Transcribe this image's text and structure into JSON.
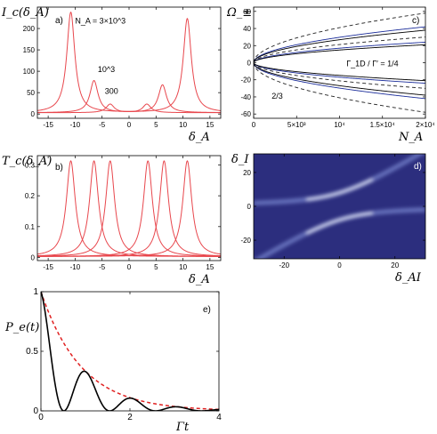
{
  "chart_data": [
    {
      "id": "a",
      "type": "line",
      "panel_label": "a)",
      "ylabel": "I_c(δ_A)",
      "xlabel": "δ_A",
      "xlim": [
        -17,
        17
      ],
      "ylim": [
        -10,
        250
      ],
      "xticks": [
        -15,
        -10,
        -5,
        0,
        5,
        10,
        15
      ],
      "yticks": [
        0,
        50,
        100,
        150,
        200
      ],
      "line_color": "#e8474d",
      "series": [
        {
          "name": "N_A = 3×10^3",
          "peaks": [
            {
              "x": -10.8,
              "y": 235,
              "w": 0.9
            },
            {
              "x": 10.8,
              "y": 220,
              "w": 0.9
            }
          ]
        },
        {
          "name": "10^3",
          "peaks": [
            {
              "x": -6.5,
              "y": 75,
              "w": 0.9
            },
            {
              "x": 6.2,
              "y": 65,
              "w": 0.9
            }
          ]
        },
        {
          "name": "300",
          "peaks": [
            {
              "x": -3.5,
              "y": 20,
              "w": 0.9
            },
            {
              "x": 3.3,
              "y": 20,
              "w": 0.9
            }
          ]
        }
      ],
      "annotations": [
        {
          "text": "N_A = 3×10^3",
          "x": -10,
          "y": 212
        },
        {
          "text": "10^3",
          "x": -5.8,
          "y": 98
        },
        {
          "text": "300",
          "x": -4.5,
          "y": 47
        }
      ]
    },
    {
      "id": "b",
      "type": "line",
      "panel_label": "b)",
      "ylabel": "T_c(δ_A)",
      "xlabel": "δ_A",
      "xlim": [
        -17,
        17
      ],
      "ylim": [
        -0.01,
        0.33
      ],
      "xticks": [
        -15,
        -10,
        -5,
        0,
        5,
        10,
        15
      ],
      "yticks": [
        0,
        0.1,
        0.2,
        0.3
      ],
      "line_color": "#e8474d",
      "peaks": [
        {
          "x": -10.8,
          "y": 0.31,
          "w": 1.0
        },
        {
          "x": -6.5,
          "y": 0.31,
          "w": 1.0
        },
        {
          "x": -3.5,
          "y": 0.31,
          "w": 1.0
        },
        {
          "x": 3.5,
          "y": 0.31,
          "w": 1.0
        },
        {
          "x": 6.5,
          "y": 0.31,
          "w": 1.0
        },
        {
          "x": 10.8,
          "y": 0.31,
          "w": 1.0
        }
      ]
    },
    {
      "id": "c",
      "type": "line",
      "panel_label": "c)",
      "ylabel": "Ω_±",
      "xlabel": "N_A",
      "xlim": [
        0,
        20000
      ],
      "ylim": [
        -65,
        65
      ],
      "xticks": [
        0,
        5000,
        10000,
        15000,
        20000
      ],
      "xtick_labels": [
        "0",
        "5×10³",
        "10⁴",
        "1.5×10⁴",
        "2×10⁴"
      ],
      "yticks": [
        -60,
        -40,
        -20,
        0,
        20,
        40,
        60
      ],
      "series": [
        {
          "name": "outer dashed",
          "style": "dashed",
          "color": "#222222",
          "end_values": [
            58,
            -58
          ]
        },
        {
          "name": "outer solid",
          "style": "solid",
          "color": "#1b2d9a",
          "end_values": [
            42,
            -42
          ]
        },
        {
          "name": "outer solid black",
          "style": "solid",
          "color": "#000000",
          "end_values": [
            38,
            -38
          ]
        },
        {
          "name": "inner dashed",
          "style": "dashed",
          "color": "#222222",
          "end_values": [
            30,
            -30
          ]
        },
        {
          "name": "inner solid",
          "style": "solid",
          "color": "#1b2d9a",
          "end_values": [
            24,
            -24
          ]
        },
        {
          "name": "inner solid black",
          "style": "solid",
          "color": "#000000",
          "end_values": [
            21,
            -21
          ]
        }
      ],
      "annotations": [
        {
          "text": "Γ_1D / Γ′ = 1/4",
          "x": 10800,
          "y": -4
        },
        {
          "text": "2/3",
          "x": 2100,
          "y": -42
        }
      ]
    },
    {
      "id": "d",
      "type": "heatmap",
      "panel_label": "d)",
      "ylabel": "δ_I",
      "xlabel": "δ_AI",
      "xlim": [
        -31,
        31
      ],
      "ylim": [
        -31,
        31
      ],
      "xticks": [
        -20,
        0,
        20
      ],
      "yticks": [
        -20,
        0,
        20
      ],
      "background_color": "#2c2e7e",
      "coupling": 8
    },
    {
      "id": "e",
      "type": "line",
      "panel_label": "e)",
      "ylabel": "P_e(t)",
      "xlabel": "Γt",
      "xlim": [
        0,
        4
      ],
      "ylim": [
        0,
        1
      ],
      "xticks": [
        0,
        2,
        4
      ],
      "yticks": [
        0,
        0.5,
        1
      ],
      "ytick_labels": [
        "0",
        "0.5",
        "1"
      ],
      "series": [
        {
          "name": "exp decay",
          "style": "dashed",
          "color": "#e02020",
          "rate": 1.1
        },
        {
          "name": "oscillating",
          "style": "solid",
          "color": "#000000",
          "rate": 1.1,
          "omega": 3.05
        }
      ]
    }
  ]
}
